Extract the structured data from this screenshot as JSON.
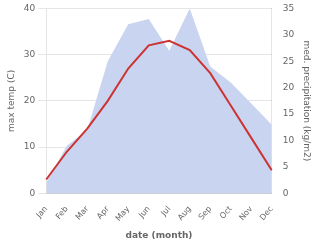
{
  "chart_data": {
    "type": "line",
    "categories": [
      "Jan",
      "Feb",
      "Mar",
      "Apr",
      "May",
      "Jun",
      "Jul",
      "Aug",
      "Sep",
      "Oct",
      "Nov",
      "Dec"
    ],
    "xlabel": "date (month)",
    "ylabel": "max temp (C)",
    "y2label": "med. precipitation (kg/m2)",
    "series": [
      {
        "type": "area",
        "color": "#c8d4f0",
        "axis": "y2",
        "values": [
          2,
          9,
          12,
          25,
          32,
          33,
          27,
          35,
          24,
          21,
          17,
          13
        ]
      },
      {
        "type": "line",
        "color": "#cc3333",
        "values": [
          3,
          9,
          14,
          20,
          27,
          32,
          33,
          31,
          26,
          19,
          12,
          5
        ]
      }
    ],
    "ylim": [
      0,
      40
    ],
    "yticks": [
      0,
      10,
      20,
      30,
      40
    ],
    "y2lim": [
      0,
      35
    ],
    "y2ticks": [
      0,
      5,
      10,
      15,
      20,
      25,
      30,
      35
    ],
    "grid": true
  }
}
